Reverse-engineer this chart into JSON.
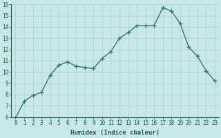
{
  "x": [
    0,
    1,
    2,
    3,
    4,
    5,
    6,
    7,
    8,
    9,
    10,
    11,
    12,
    13,
    14,
    15,
    16,
    17,
    18,
    19,
    20,
    21,
    22,
    23
  ],
  "y": [
    5.9,
    7.4,
    7.9,
    8.2,
    9.7,
    10.6,
    10.9,
    10.5,
    10.4,
    10.3,
    11.2,
    11.8,
    13.0,
    13.5,
    14.1,
    14.1,
    14.1,
    15.7,
    15.4,
    14.3,
    12.2,
    11.4,
    10.1,
    9.2
  ],
  "line_color": "#2e7d6e",
  "bg_color": "#c8e8e5",
  "grid_color": "#aed0cd",
  "xlabel": "Humidex (Indice chaleur)",
  "ylim": [
    6,
    16
  ],
  "xlim": [
    -0.5,
    23.5
  ],
  "yticks": [
    6,
    7,
    8,
    9,
    10,
    11,
    12,
    13,
    14,
    15,
    16
  ],
  "xticks": [
    0,
    1,
    2,
    3,
    4,
    5,
    6,
    7,
    8,
    9,
    10,
    11,
    12,
    13,
    14,
    15,
    16,
    17,
    18,
    19,
    20,
    21,
    22,
    23
  ],
  "font_color": "#1a5c52",
  "marker": "+",
  "markersize": 4.0,
  "linewidth": 1.0,
  "tick_fontsize": 5.5,
  "xlabel_fontsize": 6.5
}
